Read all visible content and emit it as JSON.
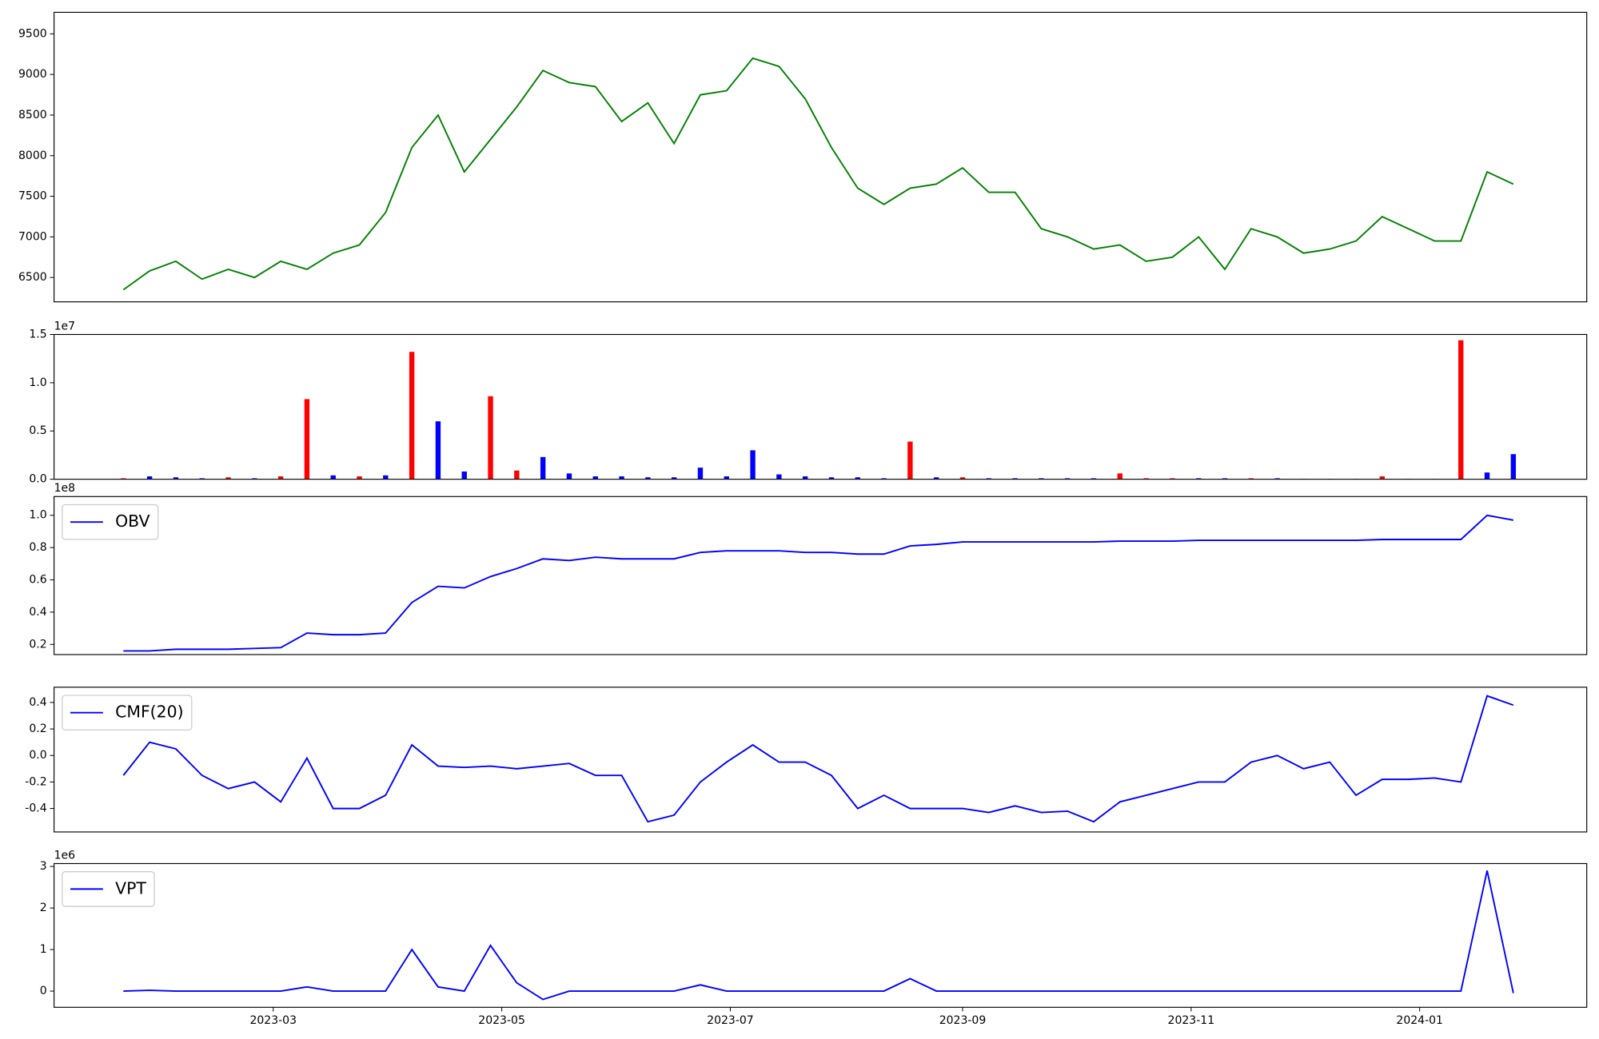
{
  "chart_data": [
    {
      "type": "line",
      "x": [
        19377,
        19384,
        19391,
        19398,
        19405,
        19412,
        19419,
        19426,
        19433,
        19440,
        19447,
        19454,
        19461,
        19468,
        19475,
        19482,
        19489,
        19496,
        19503,
        19510,
        19517,
        19524,
        19531,
        19538,
        19545,
        19552,
        19559,
        19566,
        19573,
        19580,
        19587,
        19594,
        19601,
        19608,
        19615,
        19622,
        19629,
        19636,
        19643,
        19650,
        19657,
        19664,
        19671,
        19678,
        19685,
        19692,
        19699,
        19706,
        19713,
        19720,
        19727,
        19734,
        19741,
        19748
      ],
      "xlim": [
        19358.5,
        19767.6
      ],
      "series": [
        {
          "color": "green",
          "values": [
            6350,
            6580,
            6700,
            6480,
            6600,
            6500,
            6700,
            6600,
            6800,
            6900,
            7300,
            8100,
            8500,
            7800,
            8200,
            8600,
            9050,
            8900,
            8850,
            8420,
            8650,
            8150,
            8750,
            8800,
            9200,
            9100,
            8700,
            8100,
            7600,
            7400,
            7600,
            7650,
            7850,
            7550,
            7550,
            7100,
            7000,
            6850,
            6900,
            6700,
            6750,
            7000,
            6600,
            7100,
            7000,
            6800,
            6850,
            6950,
            7250,
            7100,
            6950,
            6950,
            7800,
            7650
          ]
        }
      ],
      "ylim": [
        6200,
        9765
      ],
      "yticks": [
        6500,
        7000,
        7500,
        8000,
        8500,
        9000,
        9500
      ]
    },
    {
      "type": "bar",
      "x": [
        19377,
        19384,
        19391,
        19398,
        19405,
        19412,
        19419,
        19426,
        19433,
        19440,
        19447,
        19454,
        19461,
        19468,
        19475,
        19482,
        19489,
        19496,
        19503,
        19510,
        19517,
        19524,
        19531,
        19538,
        19545,
        19552,
        19559,
        19566,
        19573,
        19580,
        19587,
        19594,
        19601,
        19608,
        19615,
        19622,
        19629,
        19636,
        19643,
        19650,
        19657,
        19664,
        19671,
        19678,
        19685,
        19692,
        19699,
        19706,
        19713,
        19720,
        19727,
        19734,
        19741,
        19748
      ],
      "xlim": [
        19358.5,
        19767.6
      ],
      "series": [
        {
          "colors": [
            "red",
            "blue",
            "blue",
            "blue",
            "red",
            "blue",
            "red",
            "red",
            "blue",
            "red",
            "blue",
            "red",
            "blue",
            "blue",
            "red",
            "red",
            "blue",
            "blue",
            "blue",
            "blue",
            "blue",
            "blue",
            "blue",
            "blue",
            "blue",
            "blue",
            "blue",
            "blue",
            "blue",
            "blue",
            "red",
            "blue",
            "red",
            "blue",
            "blue",
            "blue",
            "blue",
            "blue",
            "red",
            "red",
            "red",
            "blue",
            "blue",
            "red",
            "blue",
            "blue",
            "blue",
            "blue",
            "red",
            "blue",
            "blue",
            "red",
            "blue",
            "blue"
          ],
          "values": [
            100000,
            300000,
            200000,
            100000,
            200000,
            100000,
            300000,
            8300000,
            400000,
            300000,
            400000,
            13200000,
            6000000,
            800000,
            8600000,
            900000,
            2300000,
            600000,
            300000,
            300000,
            200000,
            200000,
            1200000,
            300000,
            3000000,
            500000,
            300000,
            200000,
            200000,
            100000,
            3900000,
            200000,
            200000,
            100000,
            100000,
            100000,
            100000,
            100000,
            600000,
            100000,
            100000,
            100000,
            100000,
            100000,
            100000,
            50000,
            50000,
            50000,
            300000,
            50000,
            50000,
            14400000,
            700000,
            2600000
          ]
        }
      ],
      "ylim": [
        0,
        15000000
      ],
      "yticks": [
        {
          "value": 0,
          "label": "0.0"
        },
        {
          "value": 5000000,
          "label": "0.5"
        },
        {
          "value": 10000000,
          "label": "1.0"
        },
        {
          "value": 15000000,
          "label": "1.5"
        }
      ],
      "y_offset_label": "1e7"
    },
    {
      "type": "line",
      "x": [
        19377,
        19384,
        19391,
        19398,
        19405,
        19412,
        19419,
        19426,
        19433,
        19440,
        19447,
        19454,
        19461,
        19468,
        19475,
        19482,
        19489,
        19496,
        19503,
        19510,
        19517,
        19524,
        19531,
        19538,
        19545,
        19552,
        19559,
        19566,
        19573,
        19580,
        19587,
        19594,
        19601,
        19608,
        19615,
        19622,
        19629,
        19636,
        19643,
        19650,
        19657,
        19664,
        19671,
        19678,
        19685,
        19692,
        19699,
        19706,
        19713,
        19720,
        19727,
        19734,
        19741,
        19748
      ],
      "xlim": [
        19358.5,
        19767.6
      ],
      "series": [
        {
          "name": "OBV",
          "color": "blue",
          "values": [
            16000000,
            16000000,
            17000000,
            17000000,
            17000000,
            17500000,
            18000000,
            27000000,
            26000000,
            26000000,
            27000000,
            46000000,
            56000000,
            55000000,
            62000000,
            67000000,
            73000000,
            72000000,
            74000000,
            73000000,
            73000000,
            73000000,
            77000000,
            78000000,
            78000000,
            78000000,
            77000000,
            77000000,
            76000000,
            76000000,
            81000000,
            82000000,
            83500000,
            83500000,
            83500000,
            83500000,
            83500000,
            83500000,
            84000000,
            84000000,
            84000000,
            84500000,
            84500000,
            84500000,
            84500000,
            84500000,
            84500000,
            84500000,
            85000000,
            85000000,
            85000000,
            85000000,
            100000000,
            97000000
          ]
        }
      ],
      "ylim": [
        13700000,
        111600000
      ],
      "yticks": [
        {
          "value": 20000000,
          "label": "0.2"
        },
        {
          "value": 40000000,
          "label": "0.4"
        },
        {
          "value": 60000000,
          "label": "0.6"
        },
        {
          "value": 80000000,
          "label": "0.8"
        },
        {
          "value": 100000000,
          "label": "1.0"
        }
      ],
      "y_offset_label": "1e8",
      "legend": "upper left"
    },
    {
      "type": "line",
      "x": [
        19377,
        19384,
        19391,
        19398,
        19405,
        19412,
        19419,
        19426,
        19433,
        19440,
        19447,
        19454,
        19461,
        19468,
        19475,
        19482,
        19489,
        19496,
        19503,
        19510,
        19517,
        19524,
        19531,
        19538,
        19545,
        19552,
        19559,
        19566,
        19573,
        19580,
        19587,
        19594,
        19601,
        19608,
        19615,
        19622,
        19629,
        19636,
        19643,
        19650,
        19657,
        19664,
        19671,
        19678,
        19685,
        19692,
        19699,
        19706,
        19713,
        19720,
        19727,
        19734,
        19741,
        19748
      ],
      "xlim": [
        19358.5,
        19767.6
      ],
      "series": [
        {
          "name": "CMF(20)",
          "color": "blue",
          "values": [
            -0.15,
            0.1,
            0.05,
            -0.15,
            -0.25,
            -0.2,
            -0.35,
            -0.02,
            -0.4,
            -0.4,
            -0.3,
            0.08,
            -0.08,
            -0.09,
            -0.08,
            -0.1,
            -0.08,
            -0.06,
            -0.15,
            -0.15,
            -0.5,
            -0.45,
            -0.2,
            -0.05,
            0.08,
            -0.05,
            -0.05,
            -0.15,
            -0.4,
            -0.3,
            -0.4,
            -0.4,
            -0.4,
            -0.43,
            -0.38,
            -0.43,
            -0.42,
            -0.5,
            -0.35,
            -0.3,
            -0.25,
            -0.2,
            -0.2,
            -0.05,
            0.0,
            -0.1,
            -0.05,
            -0.3,
            -0.18,
            -0.18,
            -0.17,
            -0.2,
            0.45,
            0.38
          ]
        }
      ],
      "ylim": [
        -0.577,
        0.515
      ],
      "yticks": [
        -0.4,
        -0.2,
        {
          "value": 0,
          "label": "0.0"
        },
        0.2,
        0.4
      ],
      "legend": "upper left"
    },
    {
      "type": "line",
      "x": [
        19377,
        19384,
        19391,
        19398,
        19405,
        19412,
        19419,
        19426,
        19433,
        19440,
        19447,
        19454,
        19461,
        19468,
        19475,
        19482,
        19489,
        19496,
        19503,
        19510,
        19517,
        19524,
        19531,
        19538,
        19545,
        19552,
        19559,
        19566,
        19573,
        19580,
        19587,
        19594,
        19601,
        19608,
        19615,
        19622,
        19629,
        19636,
        19643,
        19650,
        19657,
        19664,
        19671,
        19678,
        19685,
        19692,
        19699,
        19706,
        19713,
        19720,
        19727,
        19734,
        19741,
        19748
      ],
      "xlim": [
        19358.5,
        19767.6
      ],
      "series": [
        {
          "name": "VPT",
          "color": "blue",
          "values": [
            0,
            20000,
            0,
            0,
            0,
            0,
            0,
            100000,
            0,
            0,
            0,
            1000000,
            100000,
            0,
            1100000,
            200000,
            -200000,
            0,
            0,
            0,
            0,
            0,
            150000,
            0,
            0,
            0,
            0,
            0,
            0,
            0,
            300000,
            0,
            0,
            0,
            0,
            0,
            0,
            0,
            0,
            0,
            0,
            0,
            0,
            0,
            0,
            0,
            0,
            0,
            0,
            0,
            0,
            0,
            2900000,
            -50000
          ]
        }
      ],
      "ylim": [
        -390000,
        3070000
      ],
      "yticks": [
        {
          "value": 0,
          "label": "0"
        },
        {
          "value": 1000000,
          "label": "1"
        },
        {
          "value": 2000000,
          "label": "2"
        },
        {
          "value": 3000000,
          "label": "3"
        }
      ],
      "y_offset_label": "1e6",
      "legend": "upper left",
      "xticks": [
        {
          "value": 19417,
          "label": "2023-03"
        },
        {
          "value": 19478,
          "label": "2023-05"
        },
        {
          "value": 19539,
          "label": "2023-07"
        },
        {
          "value": 19601,
          "label": "2023-09"
        },
        {
          "value": 19662,
          "label": "2023-11"
        },
        {
          "value": 19723,
          "label": "2024-01"
        }
      ]
    }
  ]
}
